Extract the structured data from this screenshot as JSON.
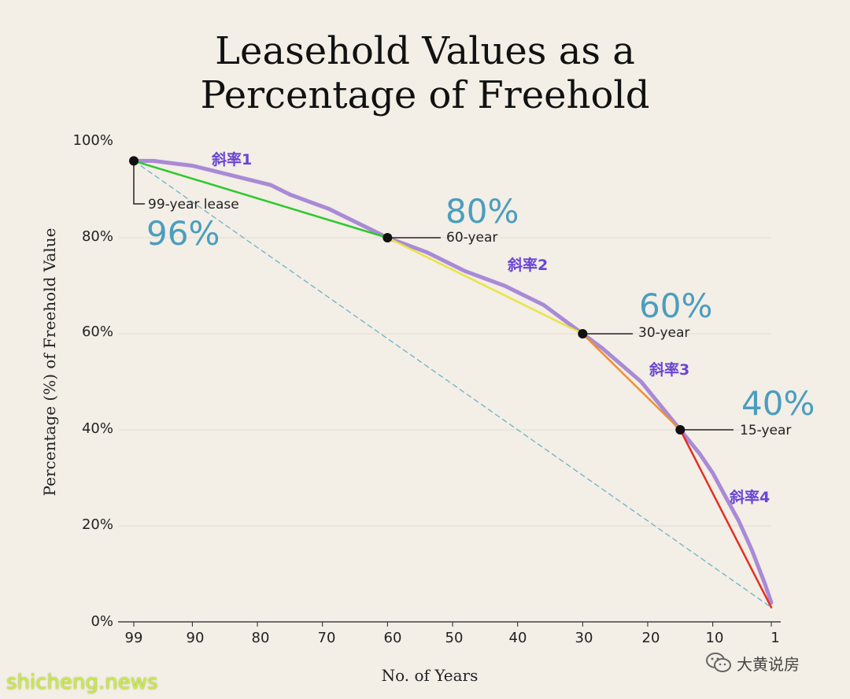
{
  "chart_data": {
    "type": "line",
    "title_lines": [
      "Leasehold Values as a",
      "Percentage of Freehold"
    ],
    "xlabel": "No. of Years",
    "ylabel": "Percentage (%) of Freehold Value",
    "xlim": [
      99,
      1
    ],
    "ylim": [
      0,
      100
    ],
    "x_ticks": [
      "99",
      "90",
      "80",
      "70",
      "60",
      "50",
      "40",
      "30",
      "20",
      "10",
      "1"
    ],
    "y_ticks": [
      "0%",
      "20%",
      "40%",
      "60%",
      "80%",
      "100%"
    ],
    "grid": "horizontal",
    "series": [
      {
        "color": "#a98ad6",
        "x": [
          99,
          96,
          93,
          90,
          87,
          84,
          81,
          78,
          75,
          72,
          69,
          66,
          63,
          60,
          57,
          54,
          51,
          48,
          45,
          42,
          39,
          36,
          33,
          30,
          27,
          24,
          21,
          18,
          15,
          12,
          10,
          8,
          6,
          4,
          2,
          1
        ],
        "y": [
          96,
          96,
          95.5,
          95,
          94,
          93,
          92,
          91,
          89,
          87.5,
          86,
          84,
          82,
          80,
          78.5,
          77,
          75,
          73,
          71.5,
          70,
          68,
          66,
          63,
          60,
          57,
          53.5,
          50,
          45,
          40,
          35,
          31,
          26,
          21,
          15,
          8,
          4
        ]
      },
      {
        "color": "#2ec82e",
        "x": [
          99,
          60
        ],
        "y": [
          96,
          80
        ]
      },
      {
        "color": "#eae444",
        "x": [
          60,
          30
        ],
        "y": [
          80,
          60
        ]
      },
      {
        "color": "#f09030",
        "x": [
          30,
          15
        ],
        "y": [
          60,
          40
        ]
      },
      {
        "color": "#e23022",
        "x": [
          15,
          1
        ],
        "y": [
          40,
          3
        ]
      },
      {
        "color": "#6ab4c8",
        "dashed": true,
        "x": [
          99,
          1
        ],
        "y": [
          96,
          3
        ]
      }
    ],
    "points": [
      {
        "x": 99,
        "y": 96,
        "label": "99-year lease",
        "big_label": "96%"
      },
      {
        "x": 60,
        "y": 80,
        "label": "60-year",
        "big_label": "80%"
      },
      {
        "x": 30,
        "y": 60,
        "label": "30-year",
        "big_label": "60%"
      },
      {
        "x": 15,
        "y": 40,
        "label": "15-year",
        "big_label": "40%"
      }
    ],
    "slope_labels": [
      "斜率1",
      "斜率2",
      "斜率3",
      "斜率4"
    ],
    "colors": {
      "pct_label": "#4a9ebe",
      "slope_label": "#6a44d6",
      "background": "#f3eee6"
    }
  },
  "watermark": "shicheng.news",
  "wechat": {
    "icon": "wechat-icon",
    "name": "大黄说房"
  }
}
